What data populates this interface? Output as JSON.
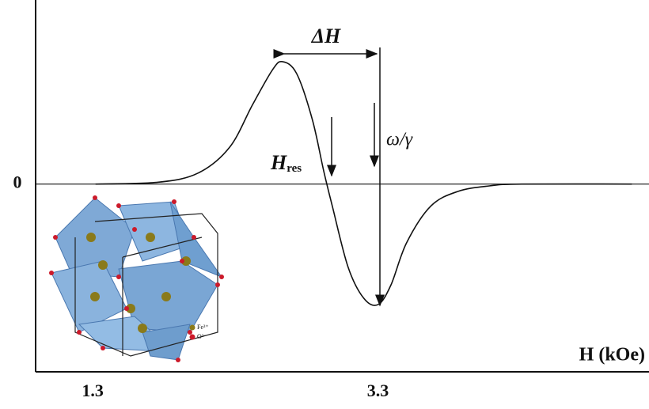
{
  "chart_data": {
    "type": "line",
    "x": [
      1.32,
      1.76,
      2.04,
      2.26,
      2.42,
      2.56,
      2.63,
      2.73,
      2.84,
      2.92,
      2.98,
      3.09,
      3.2,
      3.3,
      3.39,
      3.5,
      3.67,
      3.86,
      4.08,
      4.31,
      5.08
    ],
    "series": [
      {
        "color": "#111111",
        "values": [
          0,
          0.01,
          0.06,
          0.2,
          0.43,
          0.62,
          0.665,
          0.6,
          0.35,
          0.07,
          -0.12,
          -0.45,
          -0.62,
          -0.655,
          -0.55,
          -0.32,
          -0.12,
          -0.04,
          -0.01,
          0,
          0
        ]
      }
    ],
    "x_label": "H (kOe)",
    "xlim": [
      0.9,
      5.2
    ],
    "xticks": [
      1.3,
      3.3
    ],
    "ylim": [
      -1.02,
      1.0
    ],
    "yticks": [
      0
    ],
    "grid": false,
    "annotations": [
      "ΔH",
      "H",
      "res",
      "ω/γ"
    ],
    "inset_legend": [
      "Fe³⁺",
      "O²⁻"
    ]
  }
}
